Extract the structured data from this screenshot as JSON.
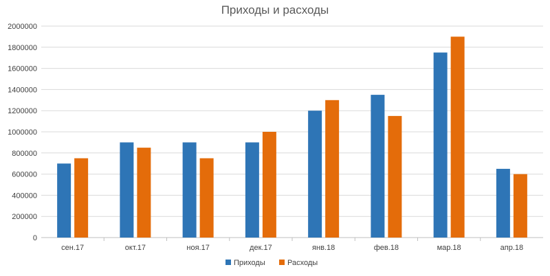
{
  "chart_data": {
    "type": "bar",
    "title": "Приходы и расходы",
    "xlabel": "",
    "ylabel": "",
    "categories": [
      "сен.17",
      "окт.17",
      "ноя.17",
      "дек.17",
      "янв.18",
      "фев.18",
      "мар.18",
      "апр.18"
    ],
    "series": [
      {
        "name": "Приходы",
        "color": "#2E75B6",
        "values": [
          700000,
          900000,
          900000,
          900000,
          1200000,
          1350000,
          1750000,
          650000
        ]
      },
      {
        "name": "Расходы",
        "color": "#E46C0A",
        "values": [
          750000,
          850000,
          750000,
          1000000,
          1300000,
          1150000,
          1900000,
          600000
        ]
      }
    ],
    "ylim": [
      0,
      2000000
    ],
    "yticks": [
      "0",
      "200000",
      "400000",
      "600000",
      "800000",
      "1000000",
      "1200000",
      "1400000",
      "1600000",
      "1800000",
      "2000000"
    ],
    "grid": true,
    "legend_position": "bottom"
  }
}
